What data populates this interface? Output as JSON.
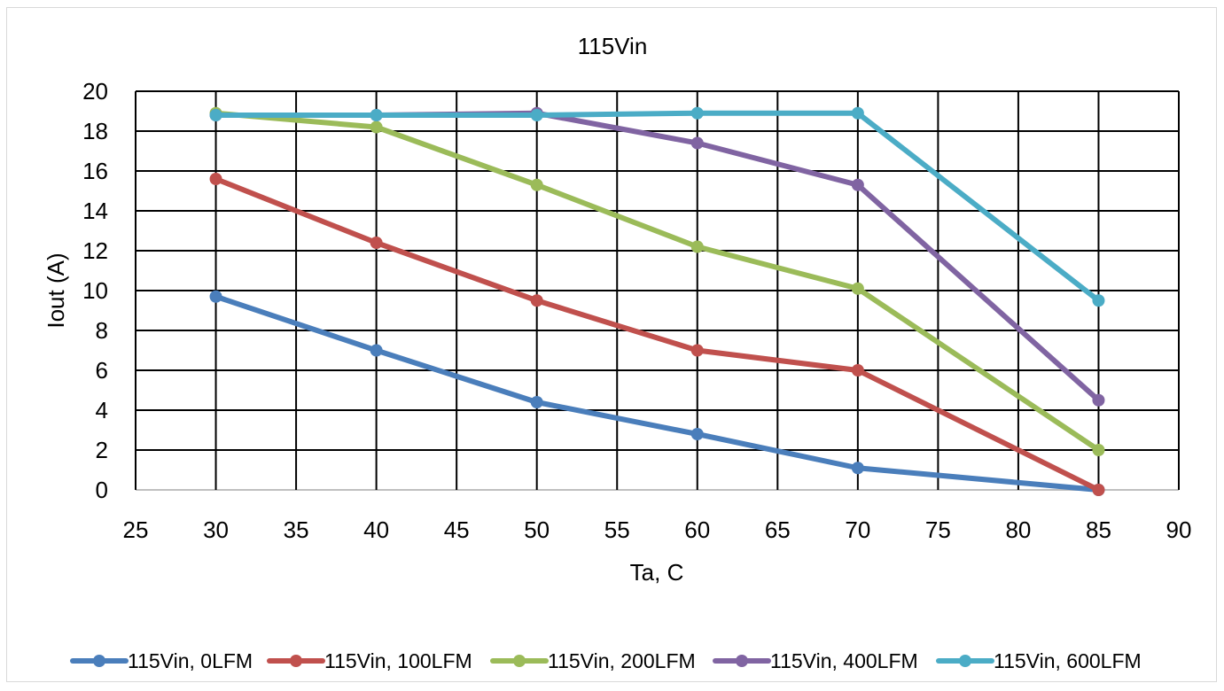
{
  "chart_data": {
    "type": "line",
    "title": "115Vin",
    "xlabel": "Ta, C",
    "ylabel": "Iout  (A)",
    "xlim": [
      25,
      90
    ],
    "ylim": [
      0,
      20
    ],
    "xticks": [
      25,
      30,
      35,
      40,
      45,
      50,
      55,
      60,
      65,
      70,
      75,
      80,
      85,
      90
    ],
    "yticks": [
      0,
      2,
      4,
      6,
      8,
      10,
      12,
      14,
      16,
      18,
      20
    ],
    "grid": true,
    "legend_position": "bottom",
    "series": [
      {
        "name": "115Vin, 0LFM",
        "color": "#4a7ebb",
        "x": [
          30,
          40,
          50,
          60,
          70,
          85
        ],
        "y": [
          9.7,
          7.0,
          4.4,
          2.8,
          1.1,
          0.0
        ]
      },
      {
        "name": "115Vin, 100LFM",
        "color": "#c0504d",
        "x": [
          30,
          40,
          50,
          60,
          70,
          85
        ],
        "y": [
          15.6,
          12.4,
          9.5,
          7.0,
          6.0,
          0.0
        ]
      },
      {
        "name": "115Vin, 200LFM",
        "color": "#9bbb59",
        "x": [
          30,
          40,
          50,
          60,
          70,
          85
        ],
        "y": [
          18.9,
          18.2,
          15.3,
          12.2,
          10.1,
          2.0
        ]
      },
      {
        "name": "115Vin, 400LFM",
        "color": "#8064a2",
        "x": [
          30,
          40,
          50,
          60,
          70,
          85
        ],
        "y": [
          18.8,
          18.8,
          18.9,
          17.4,
          15.3,
          4.5
        ]
      },
      {
        "name": "115Vin, 600LFM",
        "color": "#4bacc6",
        "x": [
          30,
          40,
          50,
          60,
          70,
          85
        ],
        "y": [
          18.8,
          18.8,
          18.8,
          18.9,
          18.9,
          9.5
        ]
      }
    ]
  }
}
